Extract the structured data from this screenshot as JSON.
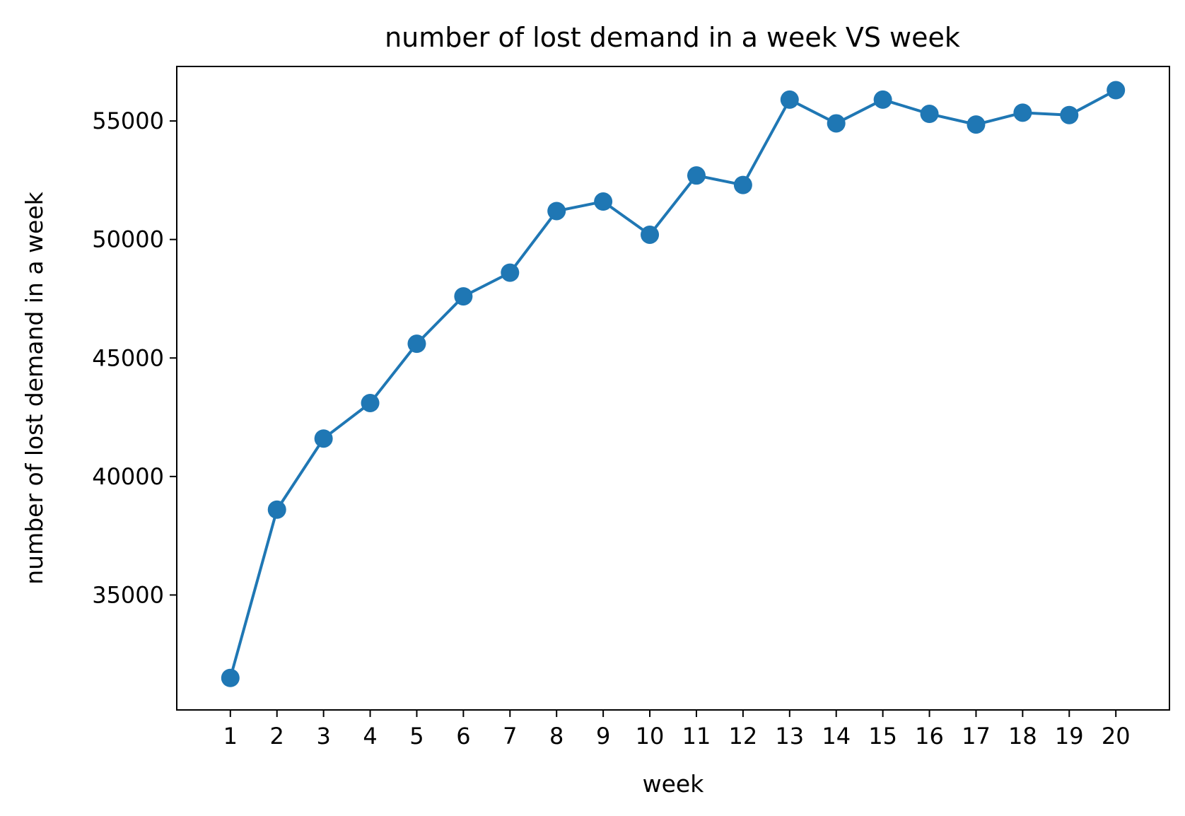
{
  "chart_data": {
    "type": "line",
    "title": "number of lost demand in a week VS week",
    "xlabel": "week",
    "ylabel": "number of lost demand in a week",
    "x": [
      1,
      2,
      3,
      4,
      5,
      6,
      7,
      8,
      9,
      10,
      11,
      12,
      13,
      14,
      15,
      16,
      17,
      18,
      19,
      20
    ],
    "x_tick_labels": [
      "1",
      "2",
      "3",
      "4",
      "5",
      "6",
      "7",
      "8",
      "9",
      "10",
      "11",
      "12",
      "13",
      "14",
      "15",
      "16",
      "17",
      "18",
      "19",
      "20"
    ],
    "series": [
      {
        "values": [
          31500,
          38600,
          41600,
          43100,
          45600,
          47600,
          48600,
          51200,
          51600,
          50200,
          52700,
          52300,
          55900,
          54900,
          55900,
          55300,
          54850,
          55350,
          55250,
          56300
        ],
        "color": "#1f77b4",
        "marker": "circle"
      }
    ],
    "y_ticks": [
      35000,
      40000,
      45000,
      50000,
      55000
    ],
    "y_tick_labels": [
      "35000",
      "40000",
      "45000",
      "50000",
      "55000"
    ],
    "xlim": [
      -0.15,
      21.15
    ],
    "ylim": [
      30150,
      57300
    ],
    "grid": false,
    "legend": "none"
  }
}
